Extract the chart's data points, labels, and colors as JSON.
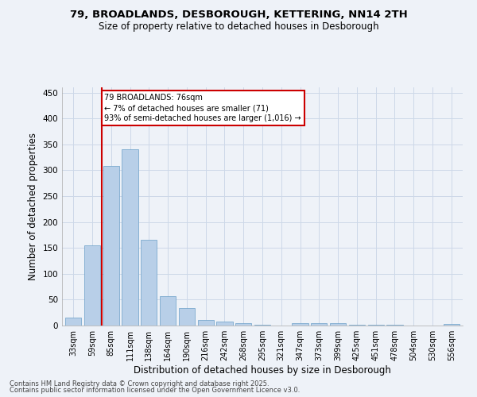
{
  "title_line1": "79, BROADLANDS, DESBOROUGH, KETTERING, NN14 2TH",
  "title_line2": "Size of property relative to detached houses in Desborough",
  "xlabel": "Distribution of detached houses by size in Desborough",
  "ylabel": "Number of detached properties",
  "categories": [
    "33sqm",
    "59sqm",
    "85sqm",
    "111sqm",
    "138sqm",
    "164sqm",
    "190sqm",
    "216sqm",
    "242sqm",
    "268sqm",
    "295sqm",
    "321sqm",
    "347sqm",
    "373sqm",
    "399sqm",
    "425sqm",
    "451sqm",
    "478sqm",
    "504sqm",
    "530sqm",
    "556sqm"
  ],
  "values": [
    15,
    155,
    308,
    340,
    165,
    57,
    34,
    10,
    8,
    5,
    2,
    0,
    5,
    5,
    4,
    2,
    1,
    1,
    0,
    0,
    3
  ],
  "bar_color": "#b8cfe8",
  "bar_edge_color": "#6a9fc8",
  "vline_index": 1.5,
  "marker_label_line1": "79 BROADLANDS: 76sqm",
  "marker_label_line2": "← 7% of detached houses are smaller (71)",
  "marker_label_line3": "93% of semi-detached houses are larger (1,016) →",
  "annotation_box_color": "#ffffff",
  "annotation_border_color": "#cc0000",
  "vline_color": "#cc0000",
  "grid_color": "#ccd8e8",
  "background_color": "#eef2f8",
  "ylim": [
    0,
    460
  ],
  "yticks": [
    0,
    50,
    100,
    150,
    200,
    250,
    300,
    350,
    400,
    450
  ],
  "footer_line1": "Contains HM Land Registry data © Crown copyright and database right 2025.",
  "footer_line2": "Contains public sector information licensed under the Open Government Licence v3.0."
}
